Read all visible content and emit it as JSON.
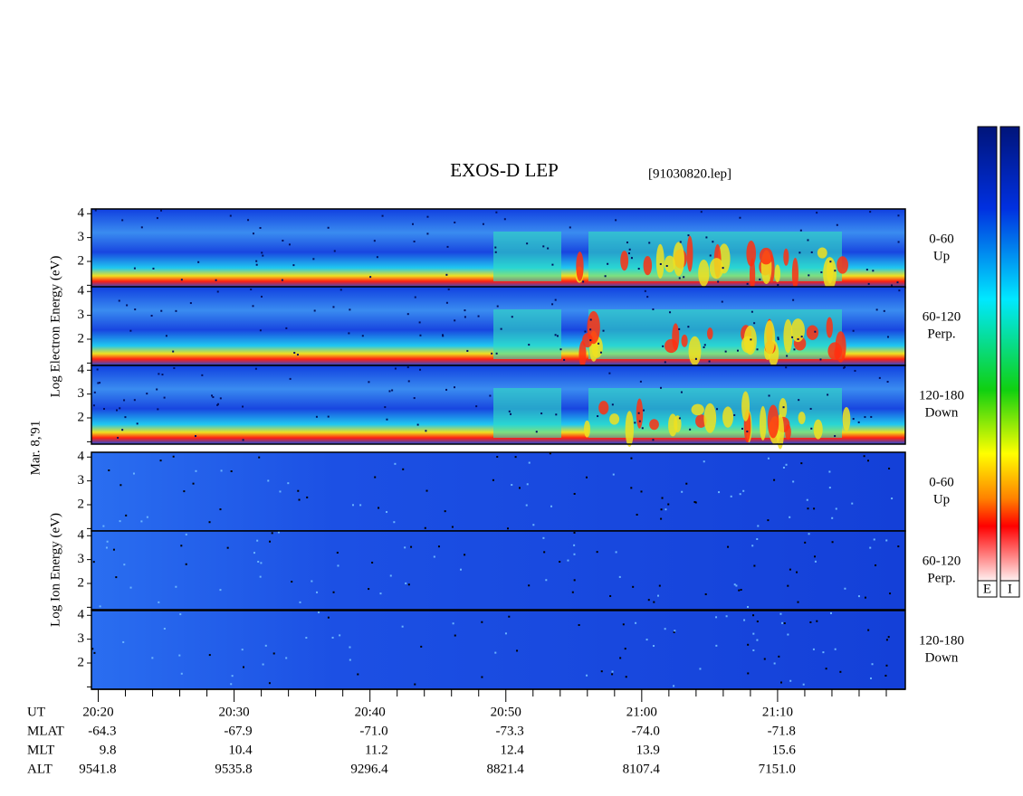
{
  "title": "EXOS-D LEP",
  "file": "[91030820.lep]",
  "date_label": "Mar. 8,'91",
  "species": [
    {
      "label": "Log Electron Energy (eV)",
      "panels": [
        {
          "lines": [
            "0-60",
            "Up"
          ]
        },
        {
          "lines": [
            "60-120",
            "Perp."
          ]
        },
        {
          "lines": [
            "120-180",
            "Down"
          ]
        }
      ]
    },
    {
      "label": "Log Ion Energy (eV)",
      "panels": [
        {
          "lines": [
            "0-60",
            "Up"
          ]
        },
        {
          "lines": [
            "60-120",
            "Perp."
          ]
        },
        {
          "lines": [
            "120-180",
            "Down"
          ]
        }
      ]
    }
  ],
  "ylim": [
    0.9,
    4.2
  ],
  "yticks": [
    2,
    3,
    4
  ],
  "minor_yticks": [
    1
  ],
  "xlim": [
    1219.5,
    1279.4
  ],
  "xticks": [
    {
      "value": 1220,
      "label": "20:20"
    },
    {
      "value": 1230,
      "label": "20:30"
    },
    {
      "value": 1240,
      "label": "20:40"
    },
    {
      "value": 1250,
      "label": "20:50"
    },
    {
      "value": 1260,
      "label": "21:00"
    },
    {
      "value": 1270,
      "label": "21:10"
    }
  ],
  "minor_xticks": [
    1222,
    1224,
    1226,
    1228,
    1232,
    1234,
    1236,
    1238,
    1242,
    1244,
    1246,
    1248,
    1252,
    1254,
    1256,
    1258,
    1262,
    1264,
    1266,
    1268,
    1272,
    1274,
    1276,
    1278
  ],
  "orbit": {
    "row_labels": [
      "UT",
      "MLAT",
      "MLT",
      "ALT"
    ],
    "rows": [
      [
        "-64.3",
        "-67.9",
        "-71.0",
        "-73.3",
        "-74.0",
        "-71.8"
      ],
      [
        "9.8",
        "10.4",
        "11.2",
        "12.4",
        "13.9",
        "15.6"
      ],
      [
        "9541.8",
        "9535.8",
        "9296.4",
        "8821.4",
        "8107.4",
        "7151.0"
      ]
    ]
  },
  "colorbar_labels": [
    "E",
    "I"
  ]
}
